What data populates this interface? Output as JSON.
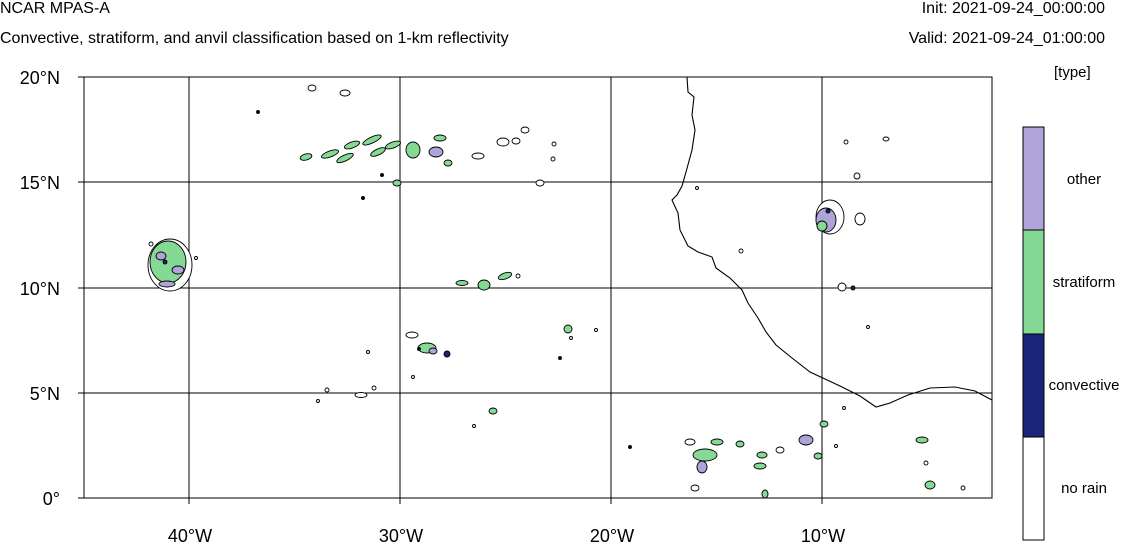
{
  "header": {
    "title": "NCAR MPAS-A",
    "subtitle": "Convective, stratiform, and anvil classification based on 1-km reflectivity",
    "init": "Init: 2021-09-24_00:00:00",
    "valid": "Valid: 2021-09-24_01:00:00"
  },
  "axes": {
    "lat_labels": [
      "20°N",
      "15°N",
      "10°N",
      "5°N",
      "0°"
    ],
    "lon_labels": [
      "40°W",
      "30°W",
      "20°W",
      "10°W"
    ]
  },
  "legend": {
    "title": "[type]",
    "items": [
      {
        "label": "other",
        "color": "#b0a3d9"
      },
      {
        "label": "stratiform",
        "color": "#86d994"
      },
      {
        "label": "convective",
        "color": "#1a2577"
      },
      {
        "label": "no rain",
        "color": "#ffffff"
      }
    ]
  },
  "colors": {
    "other": "#b0a3d9",
    "stratiform": "#86d994",
    "convective": "#1a2577",
    "outline": "#000000"
  }
}
